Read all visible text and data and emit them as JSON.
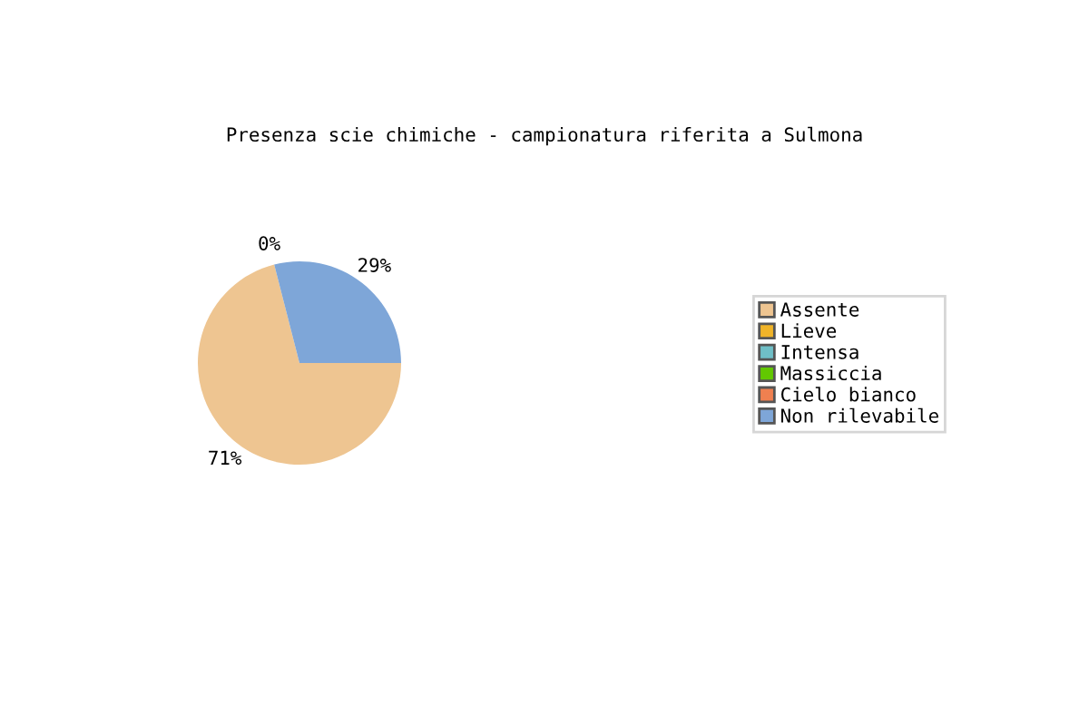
{
  "chart_data": {
    "type": "pie",
    "title": "Presenza scie chimiche - campionatura riferita a Sulmona",
    "categories": [
      "Assente",
      "Lieve",
      "Intensa",
      "Massiccia",
      "Cielo bianco",
      "Non rilevabile"
    ],
    "values": [
      71,
      0,
      0,
      0,
      0,
      29
    ],
    "value_labels": [
      "71%",
      null,
      null,
      null,
      "0%",
      "29%"
    ],
    "colors": [
      "#eec591",
      "#f0b429",
      "#6fbfc7",
      "#62c800",
      "#f08050",
      "#7ea6d8"
    ],
    "legend": "right"
  }
}
